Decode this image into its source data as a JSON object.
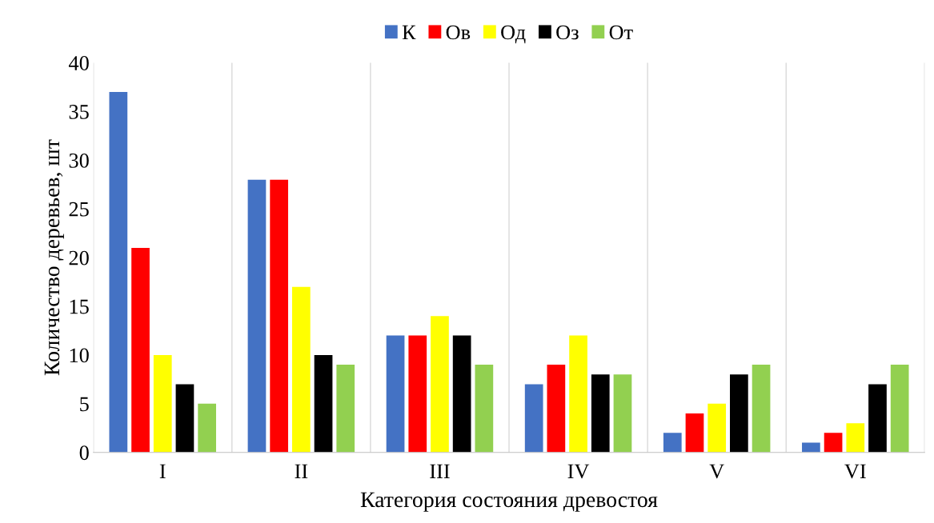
{
  "chart_data": {
    "type": "bar",
    "xlabel": "Категория состояния древостоя",
    "ylabel": "Количество деревьев, шт",
    "categories": [
      "I",
      "II",
      "III",
      "IV",
      "V",
      "VI"
    ],
    "series": [
      {
        "name": "К",
        "color": "#4472c4",
        "values": [
          37,
          28,
          12,
          7,
          2,
          1
        ]
      },
      {
        "name": "Ов",
        "color": "#ff0000",
        "values": [
          21,
          28,
          12,
          9,
          4,
          2
        ]
      },
      {
        "name": "Од",
        "color": "#ffff00",
        "values": [
          10,
          17,
          14,
          12,
          5,
          3
        ]
      },
      {
        "name": "Оз",
        "color": "#000000",
        "values": [
          7,
          10,
          12,
          8,
          8,
          7
        ]
      },
      {
        "name": "От",
        "color": "#92d050",
        "values": [
          5,
          9,
          9,
          8,
          9,
          9
        ]
      }
    ],
    "ylim": [
      0,
      40
    ],
    "yticks": [
      0,
      5,
      10,
      15,
      20,
      25,
      30,
      35,
      40
    ],
    "grid": "x",
    "legend": "top"
  }
}
